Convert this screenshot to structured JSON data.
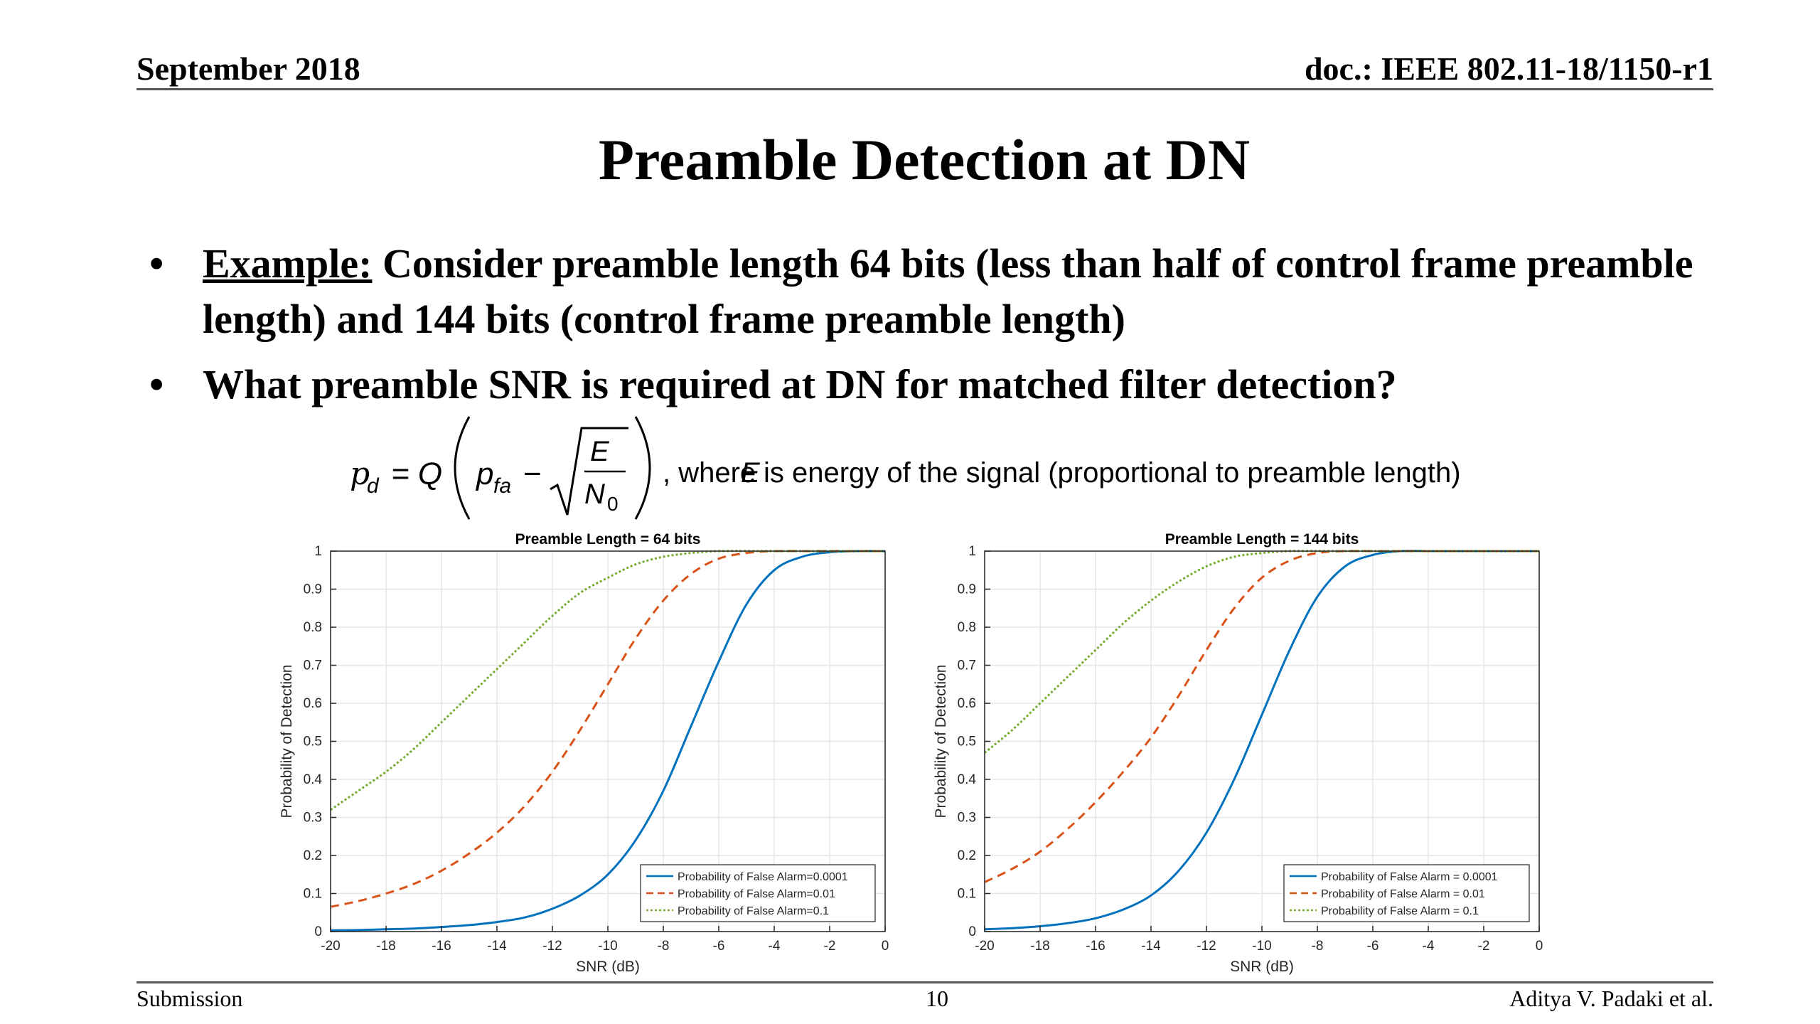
{
  "header": {
    "left": "September 2018",
    "right": "doc.: IEEE 802.11-18/1150-r1"
  },
  "title": "Preamble Detection at DN",
  "bullets": [
    {
      "label": "Example:",
      "text": " Consider preamble length 64 bits (less than half of control frame preamble length) and 144 bits (control frame preamble length)"
    },
    {
      "label": "",
      "text": "What preamble SNR is required at DN for matched filter detection?"
    }
  ],
  "formula": {
    "lhs": "p",
    "lhs_sub": "d",
    "eq": "= Q",
    "p": "p",
    "p_sub": "fa",
    "minus": "−",
    "num": "E",
    "den": "N",
    "den_sub": "0",
    "comment_pre": ", where ",
    "comment_var": "E",
    "comment_post": " is energy of the signal (proportional to preamble length)"
  },
  "footer": {
    "left": "Submission",
    "center": "10",
    "right": "Aditya V. Padaki et al."
  },
  "chart_data": [
    {
      "type": "line",
      "title": "Preamble Length = 64 bits",
      "xlabel": "SNR (dB)",
      "ylabel": "Probability of Detection",
      "xlim": [
        -20,
        0
      ],
      "ylim": [
        0,
        1
      ],
      "xticks": [
        -20,
        -18,
        -16,
        -14,
        -12,
        -10,
        -8,
        -6,
        -4,
        -2,
        0
      ],
      "yticks": [
        0,
        0.1,
        0.2,
        0.3,
        0.4,
        0.5,
        0.6,
        0.7,
        0.8,
        0.9,
        1
      ],
      "grid": true,
      "legend_position": "bottom-right",
      "x": [
        -20,
        -19,
        -18,
        -17,
        -16,
        -15,
        -14,
        -13,
        -12,
        -11,
        -10,
        -9,
        -8,
        -7,
        -6,
        -5,
        -4,
        -3,
        -2,
        -1,
        0
      ],
      "series": [
        {
          "name": "Probability of False Alarm=0.0001",
          "color": "#0072BD",
          "dash": "solid",
          "values": [
            0.003,
            0.004,
            0.006,
            0.008,
            0.012,
            0.017,
            0.025,
            0.037,
            0.06,
            0.095,
            0.15,
            0.24,
            0.37,
            0.54,
            0.71,
            0.86,
            0.95,
            0.985,
            0.997,
            1.0,
            1.0
          ]
        },
        {
          "name": "Probability of False Alarm=0.01",
          "color": "#D95319",
          "dash": "dashed",
          "values": [
            0.065,
            0.08,
            0.1,
            0.125,
            0.16,
            0.205,
            0.26,
            0.33,
            0.42,
            0.53,
            0.65,
            0.77,
            0.87,
            0.94,
            0.98,
            0.995,
            1.0,
            1.0,
            1.0,
            1.0,
            1.0
          ]
        },
        {
          "name": "Probability of False Alarm=0.1",
          "color": "#77AC30",
          "dash": "dotted",
          "values": [
            0.32,
            0.37,
            0.42,
            0.48,
            0.55,
            0.62,
            0.69,
            0.76,
            0.83,
            0.89,
            0.93,
            0.965,
            0.985,
            0.995,
            1.0,
            1.0,
            1.0,
            1.0,
            1.0,
            1.0,
            1.0
          ]
        }
      ]
    },
    {
      "type": "line",
      "title": "Preamble Length = 144 bits",
      "xlabel": "SNR (dB)",
      "ylabel": "Probability of Detection",
      "xlim": [
        -20,
        0
      ],
      "ylim": [
        0,
        1
      ],
      "xticks": [
        -20,
        -18,
        -16,
        -14,
        -12,
        -10,
        -8,
        -6,
        -4,
        -2,
        0
      ],
      "yticks": [
        0,
        0.1,
        0.2,
        0.3,
        0.4,
        0.5,
        0.6,
        0.7,
        0.8,
        0.9,
        1
      ],
      "grid": true,
      "legend_position": "bottom-right",
      "x": [
        -20,
        -19,
        -18,
        -17,
        -16,
        -15,
        -14,
        -13,
        -12,
        -11,
        -10,
        -9,
        -8,
        -7,
        -6,
        -5,
        -4,
        -3,
        -2,
        -1,
        0
      ],
      "series": [
        {
          "name": "Probability of False Alarm = 0.0001",
          "color": "#0072BD",
          "dash": "solid",
          "values": [
            0.006,
            0.009,
            0.014,
            0.022,
            0.035,
            0.058,
            0.095,
            0.16,
            0.26,
            0.4,
            0.57,
            0.74,
            0.88,
            0.96,
            0.99,
            1.0,
            1.0,
            1.0,
            1.0,
            1.0,
            1.0
          ]
        },
        {
          "name": "Probability of False Alarm = 0.01",
          "color": "#D95319",
          "dash": "dashed",
          "values": [
            0.13,
            0.165,
            0.21,
            0.27,
            0.34,
            0.42,
            0.51,
            0.62,
            0.74,
            0.85,
            0.93,
            0.975,
            0.995,
            1.0,
            1.0,
            1.0,
            1.0,
            1.0,
            1.0,
            1.0,
            1.0
          ]
        },
        {
          "name": "Probability of False Alarm = 0.1",
          "color": "#77AC30",
          "dash": "dotted",
          "values": [
            0.47,
            0.53,
            0.6,
            0.67,
            0.74,
            0.81,
            0.87,
            0.92,
            0.96,
            0.985,
            0.995,
            1.0,
            1.0,
            1.0,
            1.0,
            1.0,
            1.0,
            1.0,
            1.0,
            1.0,
            1.0
          ]
        }
      ]
    }
  ]
}
